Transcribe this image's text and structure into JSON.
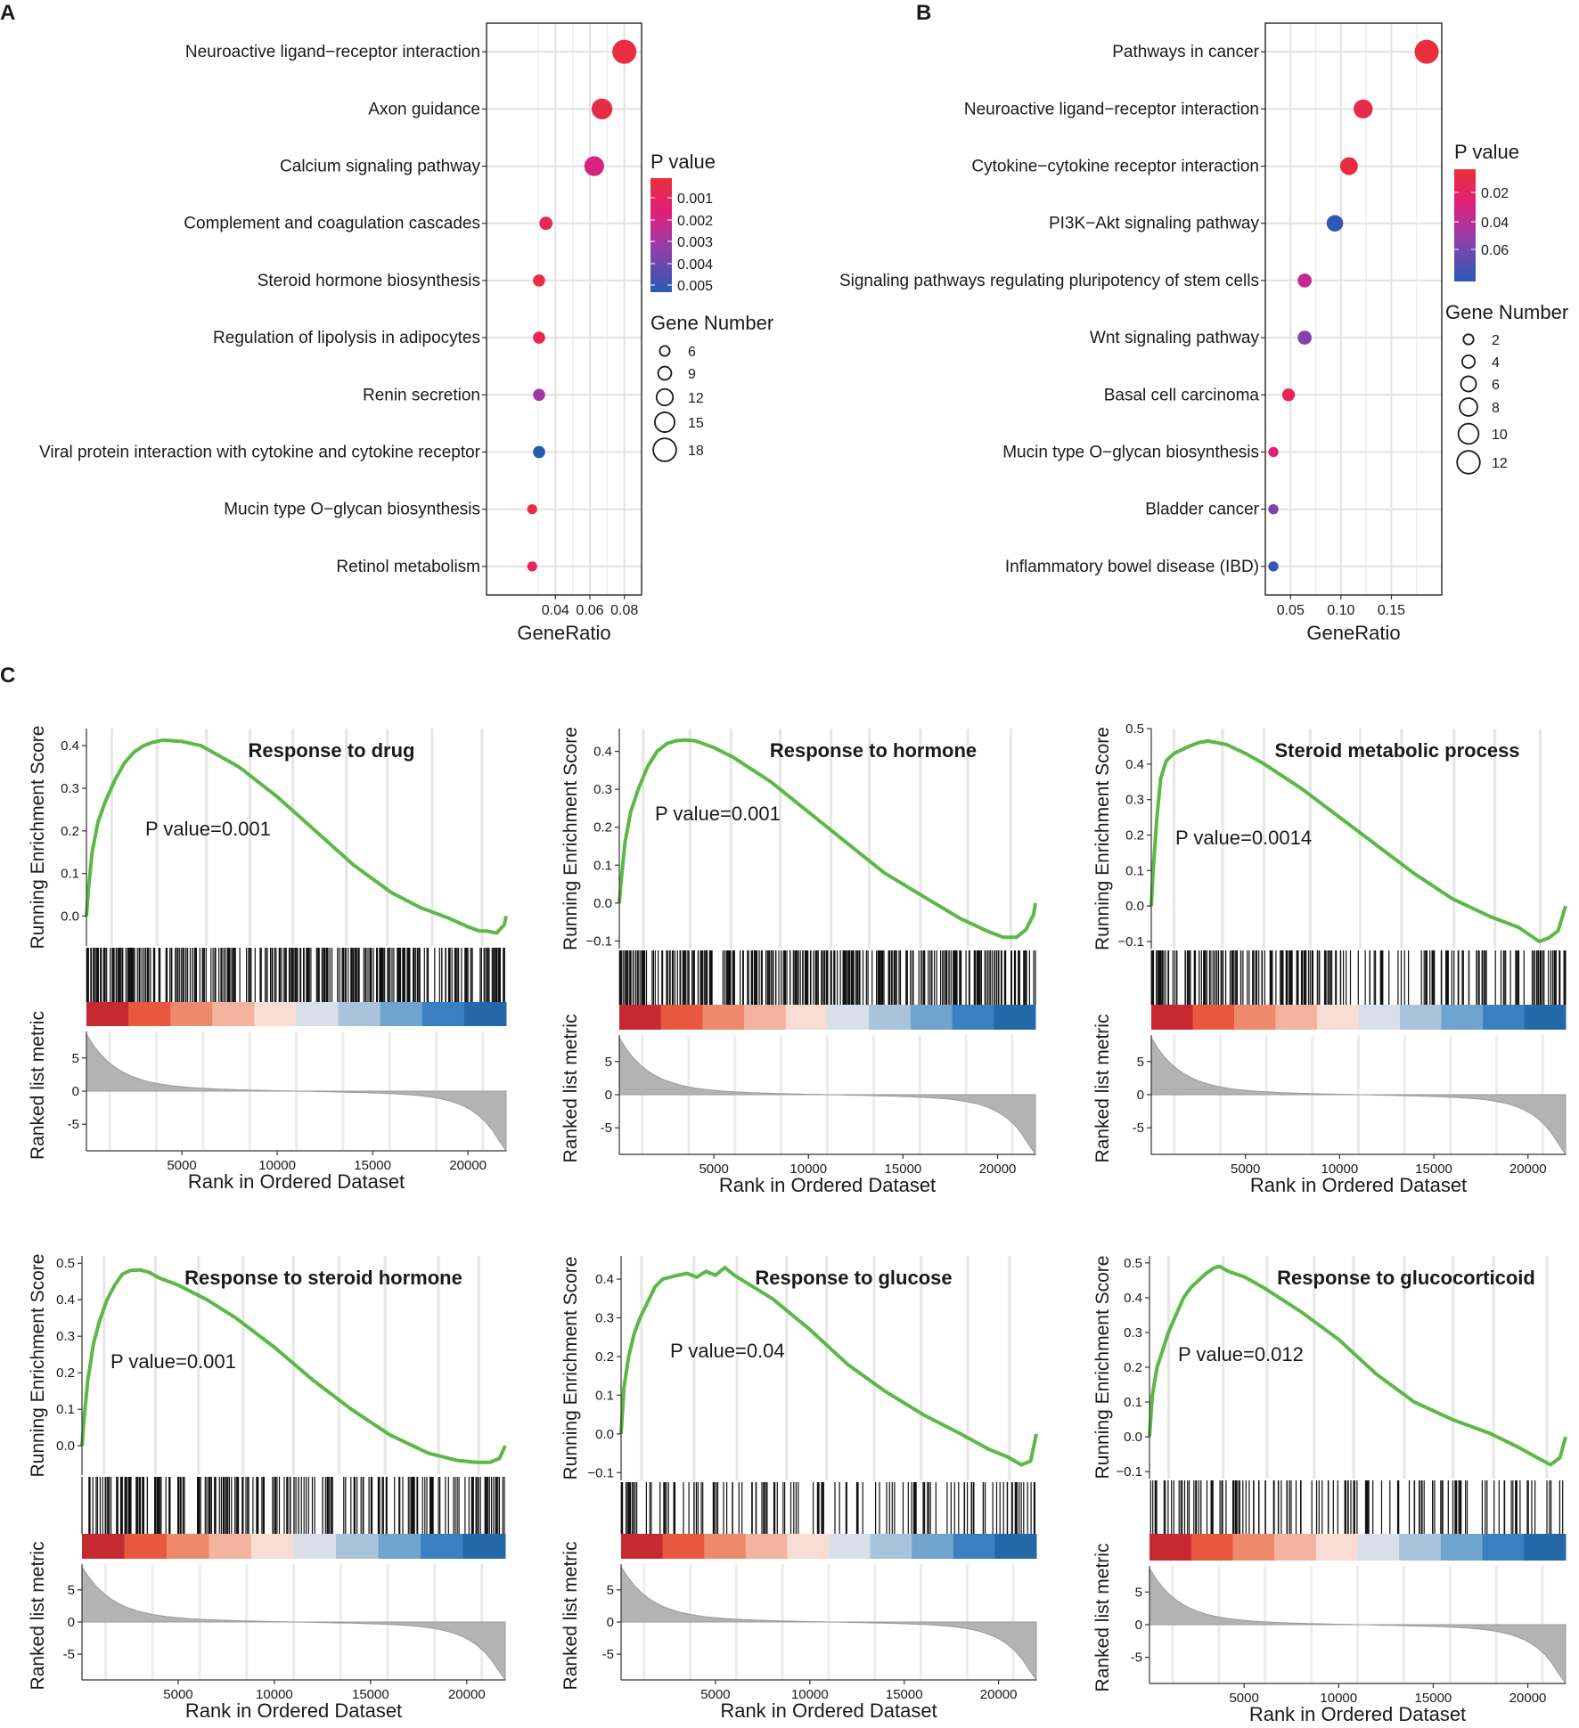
{
  "panel_labels": {
    "a": "A",
    "b": "B",
    "c": "C"
  },
  "chart_data": [
    {
      "type": "scatter",
      "panel": "A",
      "xlabel": "GeneRatio",
      "ylabel": "",
      "xlim": [
        0.0,
        0.09
      ],
      "xticks": [
        0.04,
        0.06,
        0.08
      ],
      "xtick_labels": [
        "0.04",
        "0.06",
        "0.08"
      ],
      "color_legend_title": "P value",
      "color_legend_labels": [
        "0.001",
        "0.002",
        "0.003",
        "0.004",
        "0.005"
      ],
      "size_legend_title": "Gene Number",
      "size_legend_labels": [
        "6",
        "9",
        "12",
        "15",
        "18"
      ],
      "size_legend_values": [
        6,
        9,
        12,
        15,
        18
      ],
      "pmin": 0.0005,
      "pmax": 0.005,
      "nmin": 5,
      "nmax": 19,
      "points": [
        {
          "term": "Neuroactive ligand−receptor interaction",
          "ratio": 0.08,
          "pvalue": 0.0006,
          "count": 19
        },
        {
          "term": "Axon guidance",
          "ratio": 0.067,
          "pvalue": 0.0008,
          "count": 16
        },
        {
          "term": "Calcium signaling pathway",
          "ratio": 0.0625,
          "pvalue": 0.002,
          "count": 15
        },
        {
          "term": "Complement and coagulation cascades",
          "ratio": 0.0345,
          "pvalue": 0.0012,
          "count": 9
        },
        {
          "term": "Steroid hormone biosynthesis",
          "ratio": 0.0305,
          "pvalue": 0.0006,
          "count": 8
        },
        {
          "term": "Regulation of lipolysis in adipocytes",
          "ratio": 0.0305,
          "pvalue": 0.0011,
          "count": 8
        },
        {
          "term": "Renin secretion",
          "ratio": 0.0305,
          "pvalue": 0.003,
          "count": 8
        },
        {
          "term": "Viral protein interaction with cytokine and cytokine receptor",
          "ratio": 0.0305,
          "pvalue": 0.005,
          "count": 8
        },
        {
          "term": "Mucin type O−glycan biosynthesis",
          "ratio": 0.0265,
          "pvalue": 0.0007,
          "count": 6
        },
        {
          "term": "Retinol metabolism",
          "ratio": 0.0265,
          "pvalue": 0.0013,
          "count": 6
        }
      ]
    },
    {
      "type": "scatter",
      "panel": "B",
      "xlabel": "GeneRatio",
      "ylabel": "",
      "xlim": [
        0.025,
        0.2
      ],
      "xticks": [
        0.05,
        0.1,
        0.15
      ],
      "xtick_labels": [
        "0.05",
        "0.10",
        "0.15"
      ],
      "color_legend_title": "P value",
      "color_legend_labels": [
        "0.02",
        "0.04",
        "0.06"
      ],
      "size_legend_title": "Gene Number",
      "size_legend_labels": [
        "2",
        "4",
        "6",
        "8",
        "10",
        "12"
      ],
      "size_legend_values": [
        2,
        4,
        6,
        8,
        10,
        12
      ],
      "pmin": 0.005,
      "pmax": 0.075,
      "nmin": 1,
      "nmax": 13,
      "points": [
        {
          "term": "Pathways in cancer",
          "ratio": 0.185,
          "pvalue": 0.006,
          "count": 13
        },
        {
          "term": "Neuroactive ligand−receptor interaction",
          "ratio": 0.122,
          "pvalue": 0.012,
          "count": 9
        },
        {
          "term": "Cytokine−cytokine receptor interaction",
          "ratio": 0.108,
          "pvalue": 0.008,
          "count": 8
        },
        {
          "term": "PI3K−Akt signaling pathway",
          "ratio": 0.094,
          "pvalue": 0.073,
          "count": 7
        },
        {
          "term": "Signaling pathways regulating pluripotency of stem cells",
          "ratio": 0.064,
          "pvalue": 0.035,
          "count": 5
        },
        {
          "term": "Wnt signaling pathway",
          "ratio": 0.064,
          "pvalue": 0.052,
          "count": 5
        },
        {
          "term": "Basal cell carcinoma",
          "ratio": 0.048,
          "pvalue": 0.015,
          "count": 4
        },
        {
          "term": "Mucin type O−glycan biosynthesis",
          "ratio": 0.033,
          "pvalue": 0.025,
          "count": 2
        },
        {
          "term": "Bladder cancer",
          "ratio": 0.033,
          "pvalue": 0.055,
          "count": 2
        },
        {
          "term": "Inflammatory bowel disease (IBD)",
          "ratio": 0.033,
          "pvalue": 0.072,
          "count": 2
        }
      ]
    },
    {
      "type": "line",
      "panel": "C",
      "title": "Response to drug",
      "pvalue_label": "P value=0.001",
      "ylabel": "Running Enrichment Score",
      "ylim": [
        -0.07,
        0.44
      ],
      "yticks": [
        0.0,
        0.1,
        0.2,
        0.3,
        0.4
      ],
      "ytick_labels": [
        "0.0",
        "0.1",
        "0.2",
        "0.3",
        "0.4"
      ],
      "rank_ylabel": "Ranked list metric",
      "rank_ylim": [
        -9,
        9
      ],
      "rank_yticks": [
        5,
        0,
        -5
      ],
      "xlabel": "Rank in Ordered Dataset",
      "xlim": [
        0,
        22000
      ],
      "xticks": [
        5000,
        10000,
        15000,
        20000
      ],
      "xtick_labels": [
        "5000",
        "10000",
        "15000",
        "20000"
      ],
      "x": [
        0,
        100,
        300,
        600,
        1000,
        1500,
        2000,
        2500,
        3000,
        3500,
        4000,
        5000,
        6000,
        8000,
        10000,
        12000,
        14000,
        16000,
        17500,
        19000,
        20000,
        20600,
        21000,
        21500,
        21900,
        22000
      ],
      "es": [
        0.0,
        0.06,
        0.15,
        0.22,
        0.27,
        0.32,
        0.36,
        0.385,
        0.4,
        0.408,
        0.413,
        0.41,
        0.4,
        0.35,
        0.28,
        0.2,
        0.12,
        0.055,
        0.02,
        -0.005,
        -0.025,
        -0.035,
        -0.035,
        -0.04,
        -0.02,
        0.0
      ],
      "hit_density": "dense"
    },
    {
      "type": "line",
      "panel": "C",
      "title": "Response to hormone",
      "pvalue_label": "P value=0.001",
      "ylabel": "Running Enrichment Score",
      "ylim": [
        -0.12,
        0.46
      ],
      "yticks": [
        -0.1,
        0.0,
        0.1,
        0.2,
        0.3,
        0.4
      ],
      "ytick_labels": [
        "−0.1",
        "0.0",
        "0.1",
        "0.2",
        "0.3",
        "0.4"
      ],
      "rank_ylabel": "Ranked list metric",
      "rank_ylim": [
        -9,
        9
      ],
      "rank_yticks": [
        5,
        0,
        -5
      ],
      "xlabel": "Rank in Ordered Dataset",
      "xlim": [
        0,
        22000
      ],
      "xticks": [
        5000,
        10000,
        15000,
        20000
      ],
      "xtick_labels": [
        "5000",
        "10000",
        "15000",
        "20000"
      ],
      "x": [
        0,
        100,
        300,
        600,
        1000,
        1500,
        2000,
        2500,
        3000,
        3500,
        4000,
        5000,
        6000,
        8000,
        10000,
        12000,
        14000,
        16000,
        18000,
        19500,
        20300,
        21000,
        21500,
        21900,
        22000
      ],
      "es": [
        0.0,
        0.06,
        0.16,
        0.24,
        0.3,
        0.36,
        0.4,
        0.42,
        0.428,
        0.43,
        0.428,
        0.41,
        0.385,
        0.32,
        0.24,
        0.16,
        0.08,
        0.02,
        -0.04,
        -0.075,
        -0.09,
        -0.09,
        -0.07,
        -0.03,
        0.0
      ],
      "hit_density": "dense"
    },
    {
      "type": "line",
      "panel": "C",
      "title": "Steroid metabolic process",
      "pvalue_label": "P value=0.0014",
      "ylabel": "Running Enrichment Score",
      "ylim": [
        -0.12,
        0.5
      ],
      "yticks": [
        -0.1,
        0.0,
        0.1,
        0.2,
        0.3,
        0.4,
        0.5
      ],
      "ytick_labels": [
        "−0.1",
        "0.0",
        "0.1",
        "0.2",
        "0.3",
        "0.4",
        "0.5"
      ],
      "rank_ylabel": "Ranked list metric",
      "rank_ylim": [
        -9,
        9
      ],
      "rank_yticks": [
        5,
        0,
        -5
      ],
      "xlabel": "Rank in Ordered Dataset",
      "xlim": [
        0,
        22000
      ],
      "xticks": [
        5000,
        10000,
        15000,
        20000
      ],
      "xtick_labels": [
        "5000",
        "10000",
        "15000",
        "20000"
      ],
      "x": [
        0,
        100,
        300,
        500,
        800,
        1200,
        1600,
        2000,
        2500,
        3000,
        3500,
        4000,
        5000,
        6000,
        8000,
        10000,
        12000,
        14000,
        16000,
        18000,
        19500,
        20600,
        21100,
        21600,
        22000
      ],
      "es": [
        0.0,
        0.1,
        0.25,
        0.36,
        0.41,
        0.43,
        0.44,
        0.45,
        0.46,
        0.465,
        0.46,
        0.455,
        0.43,
        0.4,
        0.33,
        0.25,
        0.17,
        0.09,
        0.02,
        -0.03,
        -0.06,
        -0.1,
        -0.09,
        -0.07,
        0.0
      ],
      "hit_density": "medium"
    },
    {
      "type": "line",
      "panel": "C",
      "title": "Response to steroid hormone",
      "pvalue_label": "P value=0.001",
      "ylabel": "Running Enrichment Score",
      "ylim": [
        -0.08,
        0.52
      ],
      "yticks": [
        0.0,
        0.1,
        0.2,
        0.3,
        0.4,
        0.5
      ],
      "ytick_labels": [
        "0.0",
        "0.1",
        "0.2",
        "0.3",
        "0.4",
        "0.5"
      ],
      "rank_ylabel": "Ranked list metric",
      "rank_ylim": [
        -9,
        9
      ],
      "rank_yticks": [
        5,
        0,
        -5
      ],
      "xlabel": "Rank in Ordered Dataset",
      "xlim": [
        0,
        22000
      ],
      "xticks": [
        5000,
        10000,
        15000,
        20000
      ],
      "xtick_labels": [
        "5000",
        "10000",
        "15000",
        "20000"
      ],
      "x": [
        0,
        100,
        300,
        600,
        900,
        1300,
        1700,
        2100,
        2500,
        3000,
        3500,
        4000,
        5000,
        6500,
        8000,
        10000,
        12000,
        14000,
        16000,
        18000,
        19500,
        20500,
        21200,
        21700,
        22000
      ],
      "es": [
        0.0,
        0.07,
        0.18,
        0.28,
        0.34,
        0.4,
        0.44,
        0.47,
        0.48,
        0.482,
        0.475,
        0.46,
        0.44,
        0.4,
        0.35,
        0.27,
        0.18,
        0.1,
        0.03,
        -0.02,
        -0.04,
        -0.045,
        -0.045,
        -0.035,
        0.0
      ],
      "hit_density": "medium"
    },
    {
      "type": "line",
      "panel": "C",
      "title": "Response to glucose",
      "pvalue_label": "P value=0.04",
      "ylabel": "Running Enrichment Score",
      "ylim": [
        -0.12,
        0.46
      ],
      "yticks": [
        -0.1,
        0.0,
        0.1,
        0.2,
        0.3,
        0.4
      ],
      "ytick_labels": [
        "−0.1",
        "0.0",
        "0.1",
        "0.2",
        "0.3",
        "0.4"
      ],
      "rank_ylabel": "Ranked list metric",
      "rank_ylim": [
        -9,
        9
      ],
      "rank_yticks": [
        5,
        0,
        -5
      ],
      "xlabel": "Rank in Ordered Dataset",
      "xlim": [
        0,
        22000
      ],
      "xticks": [
        5000,
        10000,
        15000,
        20000
      ],
      "xtick_labels": [
        "5000",
        "10000",
        "15000",
        "20000"
      ],
      "x": [
        0,
        150,
        400,
        700,
        1000,
        1400,
        1800,
        2200,
        2600,
        3000,
        3500,
        4000,
        4500,
        5000,
        5500,
        6000,
        8000,
        10000,
        12000,
        14000,
        16000,
        18000,
        19500,
        20500,
        21200,
        21700,
        22000
      ],
      "es": [
        0.0,
        0.12,
        0.2,
        0.26,
        0.3,
        0.34,
        0.38,
        0.4,
        0.405,
        0.41,
        0.415,
        0.405,
        0.42,
        0.41,
        0.43,
        0.41,
        0.35,
        0.27,
        0.18,
        0.11,
        0.05,
        0.0,
        -0.04,
        -0.06,
        -0.08,
        -0.07,
        0.0
      ],
      "hit_density": "sparse"
    },
    {
      "type": "line",
      "panel": "C",
      "title": "Response to glucocorticoid",
      "pvalue_label": "P value=0.012",
      "ylabel": "Running Enrichment Score",
      "ylim": [
        -0.12,
        0.52
      ],
      "yticks": [
        -0.1,
        0.0,
        0.1,
        0.2,
        0.3,
        0.4,
        0.5
      ],
      "ytick_labels": [
        "−0.1",
        "0.0",
        "0.1",
        "0.2",
        "0.3",
        "0.4",
        "0.5"
      ],
      "rank_ylabel": "Ranked list metric",
      "rank_ylim": [
        -9,
        9
      ],
      "rank_yticks": [
        5,
        0,
        -5
      ],
      "xlabel": "Rank in Ordered Dataset",
      "xlim": [
        0,
        22000
      ],
      "xticks": [
        5000,
        10000,
        15000,
        20000
      ],
      "xtick_labels": [
        "5000",
        "10000",
        "15000",
        "20000"
      ],
      "x": [
        0,
        150,
        400,
        700,
        1000,
        1400,
        1800,
        2200,
        2600,
        3000,
        3400,
        3700,
        4200,
        5000,
        6000,
        8000,
        10000,
        12000,
        14000,
        16000,
        18000,
        19500,
        20500,
        21200,
        21700,
        22000
      ],
      "es": [
        0.0,
        0.12,
        0.2,
        0.25,
        0.3,
        0.35,
        0.4,
        0.43,
        0.45,
        0.47,
        0.485,
        0.49,
        0.475,
        0.46,
        0.43,
        0.36,
        0.28,
        0.18,
        0.1,
        0.05,
        0.01,
        -0.03,
        -0.06,
        -0.08,
        -0.06,
        0.0
      ],
      "hit_density": "sparse"
    }
  ]
}
